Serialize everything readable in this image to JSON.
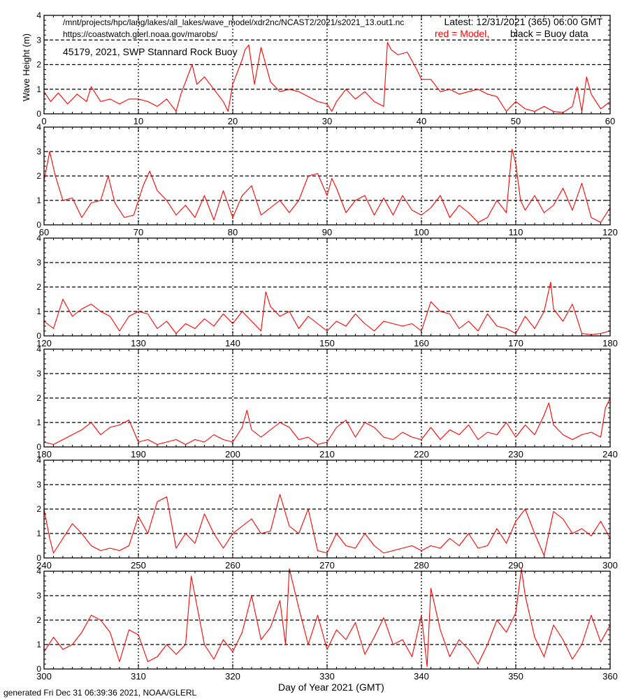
{
  "header": {
    "file_path": "/mnt/projects/hpc/lang/lakes/all_lakes/wave_model/xdr2nc/NCAST2/2021/s2021_13.out1.nc",
    "site_url": "https://coastwatch.glerl.noaa.gov/marobs/",
    "latest": "Latest: 12/31/2021 (365) 06:00 GMT",
    "model_legend": "red = Model,",
    "buoy_legend": "black = Buoy data",
    "station": "45179, 2021, SWP Stannard Rock Buoy"
  },
  "footer": {
    "generated": "generated Fri Dec 31 06:39:36 2021, NOAA/GLERL"
  },
  "colors": {
    "model": "#ff0000",
    "buoy": "#000000",
    "grid": "#000000"
  },
  "chart_data": {
    "type": "line",
    "ylabel": "Wave Height (m)",
    "xlabel": "Day of Year 2021 (GMT)",
    "ylim": [
      0,
      4
    ],
    "yticks": [
      0,
      1,
      2,
      3,
      4
    ],
    "grid": "dotted vertical every 10 days, dashed horizontal at 1, 2, 3 m",
    "legend": "top-right text",
    "panels": [
      {
        "xlim": [
          0,
          60
        ],
        "xticks": [
          0,
          10,
          20,
          30,
          40,
          50,
          60
        ],
        "series": [
          {
            "name": "Model",
            "x": [
              0,
              0.7,
              1.5,
              2.5,
              3.5,
              4.5,
              5,
              6,
              7,
              8,
              9,
              10,
              11,
              12,
              13,
              14,
              14.5,
              15,
              15.7,
              16.2,
              17,
              18,
              19,
              19.5,
              20,
              21,
              21.3,
              21.7,
              22.3,
              23,
              24,
              25,
              26,
              27,
              28,
              29,
              30,
              30.5,
              31,
              32,
              33,
              34,
              35,
              36,
              36.4,
              36.8,
              37.5,
              38.5,
              39.5,
              40,
              41,
              42,
              43,
              44,
              45,
              46,
              47,
              48,
              49,
              49.5,
              50,
              51,
              52,
              53,
              54,
              55,
              56,
              56.5,
              57,
              57.5,
              58,
              59,
              60
            ],
            "y": [
              0.9,
              0.5,
              0.85,
              0.4,
              0.8,
              0.5,
              1.1,
              0.5,
              0.6,
              0.4,
              0.6,
              0.6,
              0.5,
              0.3,
              0.6,
              0.1,
              0.8,
              1.3,
              2.0,
              1.2,
              1.5,
              1.0,
              0.5,
              0.1,
              1.2,
              2.2,
              2.6,
              2.8,
              1.2,
              2.7,
              1.3,
              0.9,
              1.0,
              0.9,
              0.7,
              0.5,
              0.4,
              0.1,
              0.5,
              1.0,
              0.6,
              0.9,
              0.5,
              0.3,
              2.9,
              2.6,
              2.4,
              2.5,
              1.8,
              1.4,
              1.4,
              0.9,
              1.0,
              0.8,
              0.9,
              1.0,
              0.8,
              0.7,
              0.1,
              0.3,
              0.5,
              0.2,
              0.1,
              0.3,
              0.1,
              0.05,
              0.3,
              1.1,
              0.1,
              1.5,
              0.8,
              0.2,
              0.5
            ]
          }
        ]
      },
      {
        "xlim": [
          60,
          120
        ],
        "xticks": [
          60,
          70,
          80,
          90,
          100,
          110,
          120
        ],
        "series": [
          {
            "name": "Model",
            "x": [
              60,
              60.6,
              61.2,
              62,
              63,
              64,
              65,
              66,
              66.8,
              67.5,
              68.5,
              69.5,
              70.5,
              71.2,
              72,
              73,
              74,
              75,
              76,
              77,
              78,
              79,
              80,
              81,
              82,
              83,
              84,
              85,
              86,
              87,
              88,
              89,
              90,
              90.5,
              91,
              92,
              93,
              94,
              95,
              96,
              97,
              98,
              99,
              100,
              101,
              102,
              103,
              104,
              105,
              106,
              107,
              108,
              109,
              109.6,
              110,
              110.5,
              111,
              112,
              113,
              114,
              115,
              116,
              117,
              117.5,
              118,
              119,
              120
            ],
            "y": [
              1.8,
              3.0,
              2.0,
              1.0,
              1.1,
              0.3,
              0.9,
              1.0,
              2.0,
              0.9,
              0.3,
              0.4,
              1.6,
              2.2,
              1.4,
              1.0,
              0.4,
              0.8,
              0.3,
              1.2,
              0.2,
              1.4,
              0.3,
              1.2,
              1.6,
              0.4,
              0.7,
              1.0,
              0.5,
              1.0,
              2.0,
              2.1,
              1.2,
              1.9,
              1.5,
              0.5,
              1.0,
              1.2,
              0.4,
              1.1,
              0.4,
              1.2,
              0.6,
              0.4,
              0.7,
              1.2,
              0.3,
              0.8,
              0.5,
              0.1,
              0.3,
              1.0,
              0.5,
              3.1,
              2.5,
              1.0,
              0.6,
              1.2,
              0.5,
              0.8,
              1.5,
              0.6,
              1.7,
              1.0,
              0.3,
              0.1,
              0.7
            ]
          }
        ]
      },
      {
        "xlim": [
          120,
          180
        ],
        "xticks": [
          120,
          130,
          140,
          150,
          160,
          170,
          180
        ],
        "series": [
          {
            "name": "Model",
            "x": [
              120,
              121,
              122,
              123,
              124,
              125,
              126,
              127,
              128,
              129,
              130,
              131,
              132,
              133,
              134,
              135,
              136,
              137,
              138,
              139,
              140,
              141,
              142,
              143,
              143.5,
              144,
              145,
              146,
              147,
              148,
              149,
              150,
              151,
              152,
              153,
              154,
              155,
              156,
              157,
              158,
              159,
              160,
              161,
              162,
              163,
              164,
              165,
              166,
              167,
              168,
              169,
              170,
              171,
              172,
              173,
              173.7,
              174,
              175,
              176,
              177,
              178,
              179,
              180
            ],
            "y": [
              0.6,
              0.3,
              1.5,
              0.8,
              1.1,
              1.3,
              1.0,
              0.8,
              0.2,
              0.8,
              1.0,
              0.9,
              0.3,
              0.6,
              0.1,
              0.5,
              0.3,
              0.7,
              0.4,
              0.9,
              0.5,
              1.0,
              0.6,
              0.2,
              1.8,
              1.2,
              0.8,
              1.0,
              0.3,
              0.8,
              0.5,
              0.2,
              0.6,
              0.4,
              0.9,
              0.5,
              0.2,
              0.6,
              0.5,
              0.4,
              0.5,
              0.2,
              1.4,
              1.0,
              0.9,
              0.3,
              0.6,
              0.2,
              0.9,
              0.4,
              0.3,
              0.1,
              0.8,
              0.3,
              1.0,
              2.2,
              1.1,
              0.6,
              1.3,
              0.1,
              0.05,
              0.1,
              0.2
            ]
          }
        ]
      },
      {
        "xlim": [
          180,
          240
        ],
        "xticks": [
          180,
          190,
          200,
          210,
          220,
          230,
          240
        ],
        "series": [
          {
            "name": "Model",
            "x": [
              180,
              181,
              182,
              183,
              184,
              185,
              186,
              187,
              188,
              189,
              190,
              191,
              192,
              193,
              194,
              195,
              196,
              197,
              198,
              199,
              200,
              201,
              201.5,
              202,
              203,
              204,
              205,
              206,
              207,
              208,
              209,
              210,
              211,
              212,
              213,
              214,
              215,
              216,
              217,
              218,
              219,
              220,
              221,
              222,
              223,
              224,
              225,
              226,
              227,
              228,
              229,
              230,
              231,
              232,
              233,
              233.5,
              234,
              235,
              236,
              237,
              238,
              239,
              239.5,
              240
            ],
            "y": [
              0.2,
              0.1,
              0.3,
              0.5,
              0.7,
              1.0,
              0.5,
              0.8,
              0.9,
              1.1,
              0.2,
              0.3,
              0.1,
              0.2,
              0.3,
              0.1,
              0.3,
              0.2,
              0.5,
              0.3,
              0.2,
              0.8,
              1.5,
              0.7,
              0.4,
              0.7,
              1.0,
              0.8,
              0.3,
              0.4,
              0.1,
              0.2,
              0.8,
              1.1,
              0.4,
              1.0,
              0.8,
              0.4,
              0.3,
              0.6,
              0.4,
              0.3,
              0.8,
              0.3,
              0.7,
              0.5,
              0.9,
              0.3,
              0.6,
              0.5,
              1.0,
              0.4,
              0.9,
              0.5,
              1.3,
              1.8,
              0.9,
              0.5,
              0.3,
              0.5,
              0.6,
              0.4,
              1.6,
              2.0
            ]
          }
        ]
      },
      {
        "xlim": [
          240,
          300
        ],
        "xticks": [
          240,
          250,
          260,
          270,
          280,
          290,
          300
        ],
        "series": [
          {
            "name": "Model",
            "x": [
              240,
              240.6,
              241,
              242,
              243,
              244,
              245,
              246,
              247,
              248,
              249,
              250,
              251,
              252,
              253,
              254,
              255,
              256,
              257,
              258,
              259,
              260,
              261,
              262,
              263,
              264,
              265,
              266,
              267,
              268,
              269,
              270,
              271,
              272,
              273,
              274,
              275,
              276,
              277,
              278,
              279,
              280,
              281,
              282,
              283,
              284,
              285,
              286,
              287,
              288,
              289,
              290,
              291,
              292,
              293,
              294,
              295,
              296,
              297,
              298,
              299,
              300
            ],
            "y": [
              2.0,
              0.8,
              0.2,
              0.8,
              1.4,
              1.0,
              0.5,
              0.3,
              0.4,
              0.3,
              0.5,
              1.7,
              1.0,
              2.3,
              2.5,
              0.4,
              1.0,
              0.6,
              1.8,
              1.0,
              0.4,
              1.0,
              1.3,
              1.6,
              1.0,
              1.1,
              2.6,
              1.3,
              1.0,
              2.0,
              0.3,
              0.2,
              1.0,
              0.5,
              0.4,
              1.0,
              0.5,
              0.2,
              0.3,
              0.4,
              0.5,
              0.3,
              0.5,
              0.4,
              0.8,
              0.5,
              1.0,
              0.4,
              0.5,
              1.2,
              0.6,
              1.5,
              2.0,
              1.0,
              0.1,
              1.9,
              1.6,
              1.0,
              1.2,
              0.9,
              1.5,
              0.8
            ]
          }
        ]
      },
      {
        "xlim": [
          300,
          360
        ],
        "xticks": [
          300,
          310,
          320,
          330,
          340,
          350,
          360
        ],
        "series": [
          {
            "name": "Model",
            "x": [
              300,
              301,
              302,
              303,
              304,
              305,
              306,
              307,
              308,
              309,
              310,
              311,
              312,
              313,
              314,
              315,
              315.6,
              316,
              317,
              318,
              319,
              320,
              321,
              322,
              323,
              324,
              325,
              325.6,
              326,
              327,
              328,
              329,
              330,
              331,
              332,
              333,
              334,
              335,
              336,
              337,
              338,
              339,
              340,
              340.6,
              341,
              342,
              343,
              344,
              345,
              346,
              347,
              348,
              349,
              350,
              350.6,
              351,
              352,
              353,
              354,
              355,
              356,
              357,
              358,
              359,
              360
            ],
            "y": [
              0.7,
              1.3,
              0.8,
              1.0,
              1.5,
              2.2,
              2.0,
              1.5,
              0.3,
              1.6,
              1.4,
              0.3,
              0.5,
              1.0,
              0.6,
              1.0,
              3.8,
              3.0,
              1.0,
              0.4,
              1.2,
              0.7,
              1.5,
              3.0,
              1.2,
              1.7,
              2.8,
              1.0,
              4.1,
              2.5,
              1.0,
              2.2,
              0.8,
              1.6,
              1.2,
              1.9,
              0.6,
              1.3,
              2.1,
              1.0,
              1.2,
              0.5,
              2.2,
              0.1,
              3.3,
              1.6,
              0.5,
              1.2,
              0.8,
              0.2,
              1.0,
              2.0,
              1.5,
              2.3,
              4.1,
              3.0,
              1.3,
              0.5,
              1.8,
              1.2,
              0.4,
              1.0,
              2.2,
              1.1,
              1.8
            ]
          }
        ]
      }
    ]
  }
}
